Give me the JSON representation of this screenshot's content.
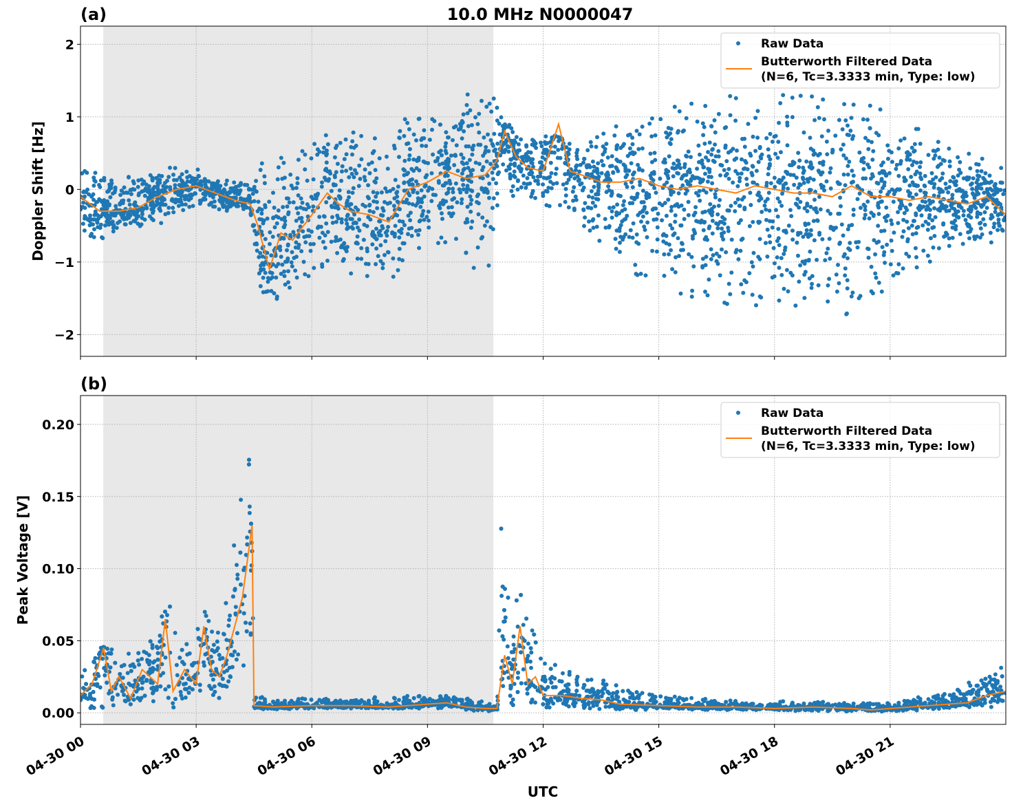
{
  "figure": {
    "title": "10.0 MHz N0000047",
    "xlabel": "UTC",
    "colors": {
      "raw": "#1f77b4",
      "filtered": "#ff7f0e",
      "shade": "#e8e8e8",
      "grid": "#b0b0b0"
    }
  },
  "chart_data": [
    {
      "type": "scatter",
      "panel_label": "(a)",
      "ylabel": "Doppler Shift [Hz]",
      "xlim_hours": [
        0,
        24
      ],
      "ylim": [
        -2.3,
        2.25
      ],
      "grid": true,
      "legend_placement": "upper-right",
      "x_ticks": [
        "04-30 00",
        "04-30 03",
        "04-30 06",
        "04-30 09",
        "04-30 12",
        "04-30 15",
        "04-30 18",
        "04-30 21"
      ],
      "x_tick_hours": [
        0,
        3,
        6,
        9,
        12,
        15,
        18,
        21
      ],
      "y_ticks": [
        -2,
        -1,
        0,
        1,
        2
      ],
      "y_tick_labels": [
        "−2",
        "−1",
        "0",
        "1",
        "2"
      ],
      "shaded_interval_hours": [
        0.59,
        10.71
      ],
      "legend": [
        "Raw Data",
        "Butterworth Filtered Data",
        "(N=6, Tc=3.3333 min, Type: low)"
      ],
      "series": [
        {
          "name": "Raw Data",
          "kind": "scatter-envelope",
          "t": [
            0,
            0.5,
            1,
            1.5,
            2,
            2.5,
            3,
            3.5,
            4,
            4.4,
            4.6,
            5,
            5.5,
            6,
            6.5,
            7,
            7.5,
            8,
            8.5,
            9,
            9.5,
            10,
            10.5,
            10.7,
            10.9,
            11.5,
            12,
            12.5,
            13,
            14,
            15,
            16,
            17,
            18,
            19,
            20,
            21,
            22,
            23,
            24
          ],
          "low": [
            -0.6,
            -0.7,
            -0.6,
            -0.6,
            -0.5,
            -0.3,
            -0.3,
            -0.3,
            -0.3,
            -0.3,
            -1.5,
            -1.8,
            -1.4,
            -1.2,
            -1.0,
            -1.2,
            -1.2,
            -1.3,
            -0.9,
            -0.8,
            -0.8,
            -1.0,
            -1.2,
            -1.0,
            -0.05,
            -0.15,
            -0.2,
            -0.3,
            -0.5,
            -1.0,
            -1.4,
            -1.5,
            -1.6,
            -1.6,
            -1.6,
            -1.8,
            -1.3,
            -1.0,
            -0.8,
            -0.7
          ],
          "high": [
            0.4,
            0.3,
            0.2,
            0.2,
            0.3,
            0.3,
            0.3,
            0.2,
            0.1,
            0.1,
            0.4,
            0.5,
            0.5,
            0.6,
            0.8,
            0.8,
            0.7,
            0.8,
            1.0,
            1.1,
            1.2,
            1.3,
            1.4,
            1.4,
            1.0,
            0.7,
            0.8,
            0.7,
            0.6,
            0.9,
            1.1,
            1.2,
            1.3,
            1.3,
            1.3,
            1.4,
            1.0,
            0.8,
            0.5,
            0.3
          ]
        },
        {
          "name": "Butterworth Filtered Data",
          "kind": "line",
          "t": [
            0,
            0.5,
            1,
            1.5,
            2,
            2.5,
            3,
            3.5,
            4,
            4.4,
            4.6,
            4.9,
            5.2,
            5.5,
            6,
            6.4,
            6.7,
            7,
            7.5,
            8,
            8.5,
            9,
            9.5,
            10,
            10.5,
            10.8,
            11,
            11.3,
            11.6,
            12,
            12.4,
            12.7,
            13,
            13.5,
            14,
            14.5,
            15,
            15.5,
            16,
            16.5,
            17,
            17.5,
            18,
            18.5,
            19,
            19.5,
            20,
            20.5,
            21,
            21.5,
            22,
            22.5,
            23,
            23.5,
            24
          ],
          "values": [
            -0.1,
            -0.3,
            -0.3,
            -0.25,
            -0.1,
            0.0,
            0.05,
            -0.05,
            -0.15,
            -0.2,
            -0.5,
            -1.1,
            -0.6,
            -0.7,
            -0.35,
            -0.05,
            -0.2,
            -0.3,
            -0.35,
            -0.45,
            0.0,
            0.1,
            0.25,
            0.15,
            0.2,
            0.4,
            0.8,
            0.45,
            0.3,
            0.25,
            0.9,
            0.25,
            0.2,
            0.1,
            0.1,
            0.15,
            0.05,
            0.0,
            0.05,
            0.0,
            -0.05,
            0.05,
            0.0,
            -0.05,
            -0.05,
            -0.1,
            0.05,
            -0.1,
            -0.1,
            -0.15,
            -0.1,
            -0.15,
            -0.2,
            -0.1,
            -0.35
          ]
        }
      ]
    },
    {
      "type": "scatter",
      "panel_label": "(b)",
      "ylabel": "Peak Voltage [V]",
      "xlim_hours": [
        0,
        24
      ],
      "ylim": [
        -0.008,
        0.22
      ],
      "grid": true,
      "legend_placement": "upper-right",
      "x_ticks": [
        "04-30 00",
        "04-30 03",
        "04-30 06",
        "04-30 09",
        "04-30 12",
        "04-30 15",
        "04-30 18",
        "04-30 21"
      ],
      "x_tick_hours": [
        0,
        3,
        6,
        9,
        12,
        15,
        18,
        21
      ],
      "y_ticks": [
        0,
        0.05,
        0.1,
        0.15,
        0.2
      ],
      "y_tick_labels": [
        "0.00",
        "0.05",
        "0.10",
        "0.15",
        "0.20"
      ],
      "shaded_interval_hours": [
        0.59,
        10.71
      ],
      "legend": [
        "Raw Data",
        "Butterworth Filtered Data",
        "(N=6, Tc=3.3333 min, Type: low)"
      ],
      "series": [
        {
          "name": "Raw Data",
          "kind": "scatter-envelope",
          "t": [
            0,
            0.5,
            0.7,
            1,
            1.5,
            2,
            2.2,
            2.5,
            3,
            3.3,
            3.5,
            4,
            4.2,
            4.4,
            4.5,
            5,
            6,
            7,
            8,
            9,
            9.5,
            10,
            10.5,
            10.8,
            10.9,
            11.1,
            11.5,
            12,
            12.5,
            13,
            14,
            15,
            16,
            17,
            18,
            19,
            20,
            21,
            22,
            23,
            23.7,
            24
          ],
          "low": [
            0.003,
            0.003,
            0.003,
            0.003,
            0.003,
            0.003,
            0.003,
            0.003,
            0.003,
            0.005,
            0.008,
            0.01,
            0.015,
            0.02,
            0.002,
            0.002,
            0.003,
            0.003,
            0.003,
            0.003,
            0.003,
            0.002,
            0.001,
            0.001,
            0.003,
            0.005,
            0.005,
            0.004,
            0.003,
            0.003,
            0.002,
            0.002,
            0.002,
            0.002,
            0.002,
            0.001,
            0.001,
            0.001,
            0.002,
            0.003,
            0.004,
            0.005
          ],
          "high": [
            0.03,
            0.045,
            0.06,
            0.04,
            0.045,
            0.06,
            0.09,
            0.05,
            0.055,
            0.09,
            0.06,
            0.12,
            0.16,
            0.21,
            0.012,
            0.01,
            0.01,
            0.009,
            0.012,
            0.012,
            0.014,
            0.01,
            0.008,
            0.005,
            0.13,
            0.09,
            0.085,
            0.04,
            0.03,
            0.028,
            0.018,
            0.012,
            0.01,
            0.009,
            0.008,
            0.008,
            0.007,
            0.008,
            0.012,
            0.02,
            0.035,
            0.03
          ]
        },
        {
          "name": "Butterworth Filtered Data",
          "kind": "line",
          "t": [
            0,
            0.3,
            0.6,
            0.8,
            1,
            1.3,
            1.6,
            2,
            2.2,
            2.4,
            2.7,
            3,
            3.2,
            3.4,
            3.6,
            3.8,
            4,
            4.2,
            4.35,
            4.45,
            4.5,
            5,
            6,
            7,
            8,
            9,
            9.5,
            10,
            10.5,
            10.8,
            11,
            11.2,
            11.4,
            11.6,
            11.8,
            12,
            12.5,
            13,
            13.5,
            14,
            15,
            16,
            17,
            18,
            19,
            20,
            20.5,
            21,
            22,
            23,
            23.5,
            24
          ],
          "values": [
            0.012,
            0.02,
            0.045,
            0.015,
            0.025,
            0.01,
            0.03,
            0.02,
            0.065,
            0.015,
            0.03,
            0.02,
            0.06,
            0.03,
            0.025,
            0.04,
            0.06,
            0.08,
            0.11,
            0.13,
            0.005,
            0.004,
            0.005,
            0.005,
            0.004,
            0.006,
            0.007,
            0.004,
            0.003,
            0.003,
            0.04,
            0.02,
            0.06,
            0.02,
            0.025,
            0.012,
            0.012,
            0.01,
            0.009,
            0.006,
            0.005,
            0.004,
            0.004,
            0.003,
            0.004,
            0.003,
            0.002,
            0.003,
            0.005,
            0.007,
            0.012,
            0.015
          ]
        }
      ]
    }
  ]
}
